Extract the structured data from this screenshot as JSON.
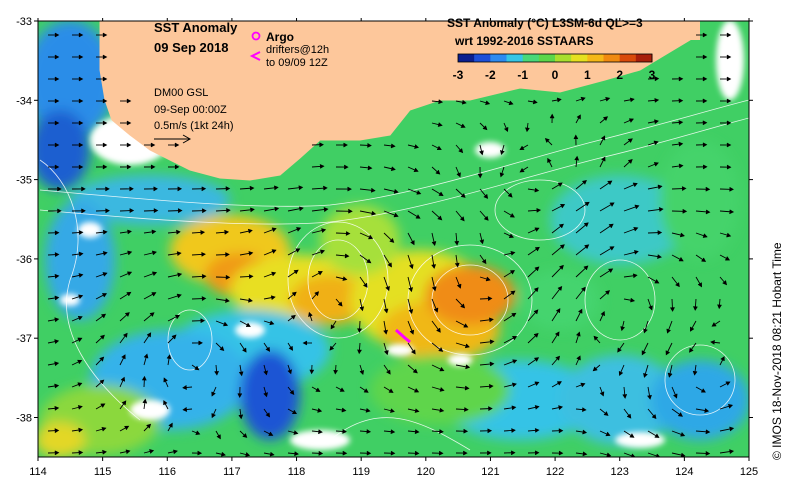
{
  "title": {
    "line1": "SST Anomaly",
    "line2": "09 Sep 2018"
  },
  "argo_label": "Argo",
  "drifters": {
    "line1": "drifters@12h",
    "line2": "to 09/09 12Z"
  },
  "model": {
    "line1": "DM00 GSL",
    "line2": "09-Sep 00:00Z",
    "line3": "0.5m/s (1kt 24h)"
  },
  "colorbar": {
    "title1": "SST Anomaly (°C) L3SM-6d QL>=3",
    "title2": "wrt 1992-2016 SSTAARS",
    "ticks": [
      "-3",
      "-2",
      "-1",
      "0",
      "1",
      "2",
      "3"
    ],
    "colors": [
      "#0a1f8f",
      "#1d4fd8",
      "#2e8bf0",
      "#36c6e6",
      "#49d879",
      "#5cd64a",
      "#a9df2e",
      "#e6e020",
      "#f5b818",
      "#f08a10",
      "#d94a0a",
      "#a81f0a"
    ]
  },
  "credit": "© IMOS 18-Nov-2018 08:21 Hobart Time",
  "axes": {
    "x_ticks": [
      "114",
      "115",
      "116",
      "117",
      "118",
      "119",
      "120",
      "121",
      "122",
      "123",
      "124",
      "125"
    ],
    "y_ticks": [
      "-33",
      "-34",
      "-35",
      "-36",
      "-37",
      "-38"
    ]
  },
  "colors": {
    "land": "#fdc79b",
    "ocean_base": "#3fcf63",
    "argo": "#ff00ff"
  }
}
